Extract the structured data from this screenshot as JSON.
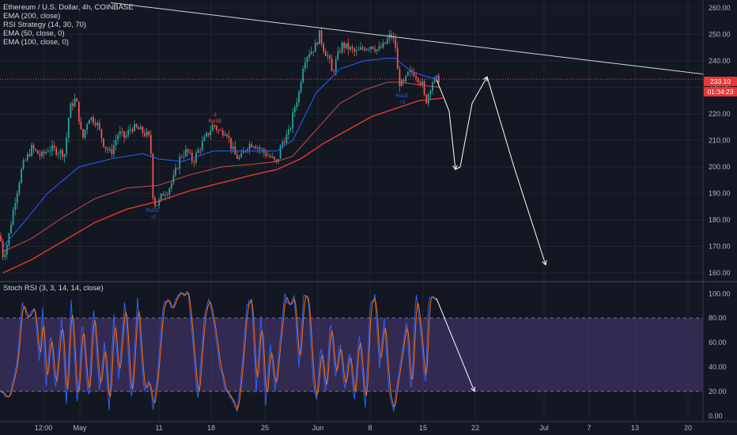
{
  "legend": {
    "title": "Ethereum / U.S. Dollar, 4h, COINBASE",
    "studies": [
      "EMA (200, close)",
      "RSI Strategy (14, 30, 70)",
      "EMA (50, close, 0)",
      "EMA (100, close, 0)"
    ]
  },
  "stoch_legend": "Stoch RSI (3, 3, 14, 14, close)",
  "price_tag": "233.10",
  "countdown_tag": "01:34:23",
  "signals": [
    "-2",
    "RsiSE",
    "RsiLE",
    "+2",
    "RsiLE",
    "+2"
  ],
  "colors": {
    "background": "#131722",
    "up": "#26a69a",
    "down": "#ef5350",
    "ema50": "#2962ff",
    "ema100": "#ef5350",
    "ema200": "#e53935",
    "stoch_k": "#2962ff",
    "stoch_d": "#ff6d00",
    "rsi_band": "#7e57c2"
  },
  "chart_data": [
    {
      "type": "candlestick",
      "title": "Ethereum / U.S. Dollar, 4h, COINBASE",
      "ylim": [
        157,
        263
      ],
      "y_ticks": [
        160,
        170,
        180,
        190,
        200,
        210,
        220,
        230,
        240,
        250,
        260
      ],
      "x_ticks": [
        "12:00",
        "May",
        "11",
        "18",
        "25",
        "Jun",
        "8",
        "15",
        "22",
        "Jul",
        "7",
        "13",
        "20"
      ],
      "price_path": [
        [
          0,
          174
        ],
        [
          4,
          166
        ],
        [
          10,
          172
        ],
        [
          18,
          186
        ],
        [
          28,
          200
        ],
        [
          40,
          207
        ],
        [
          52,
          204
        ],
        [
          62,
          207
        ],
        [
          72,
          206
        ],
        [
          82,
          205
        ],
        [
          88,
          222
        ],
        [
          96,
          226
        ],
        [
          104,
          210
        ],
        [
          112,
          219
        ],
        [
          122,
          217
        ],
        [
          132,
          208
        ],
        [
          140,
          205
        ],
        [
          150,
          213
        ],
        [
          158,
          211
        ],
        [
          166,
          215
        ],
        [
          176,
          214
        ],
        [
          186,
          212
        ],
        [
          190,
          210
        ],
        [
          194,
          186
        ],
        [
          200,
          186
        ],
        [
          206,
          190
        ],
        [
          212,
          191
        ],
        [
          220,
          196
        ],
        [
          228,
          204
        ],
        [
          236,
          206
        ],
        [
          244,
          202
        ],
        [
          252,
          207
        ],
        [
          262,
          212
        ],
        [
          270,
          216
        ],
        [
          278,
          213
        ],
        [
          286,
          214
        ],
        [
          292,
          208
        ],
        [
          298,
          204
        ],
        [
          304,
          203
        ],
        [
          312,
          208
        ],
        [
          320,
          209
        ],
        [
          328,
          207
        ],
        [
          336,
          205
        ],
        [
          344,
          203
        ],
        [
          350,
          201
        ],
        [
          356,
          209
        ],
        [
          366,
          213
        ],
        [
          372,
          222
        ],
        [
          378,
          228
        ],
        [
          384,
          240
        ],
        [
          390,
          243
        ],
        [
          398,
          245
        ],
        [
          404,
          250
        ],
        [
          410,
          244
        ],
        [
          416,
          241
        ],
        [
          420,
          235
        ],
        [
          426,
          241
        ],
        [
          432,
          246
        ],
        [
          440,
          245
        ],
        [
          450,
          243
        ],
        [
          460,
          245
        ],
        [
          470,
          246
        ],
        [
          478,
          244
        ],
        [
          486,
          246
        ],
        [
          494,
          250
        ],
        [
          500,
          246
        ],
        [
          504,
          232
        ],
        [
          510,
          231
        ],
        [
          516,
          235
        ],
        [
          522,
          236
        ],
        [
          528,
          234
        ],
        [
          534,
          231
        ],
        [
          538,
          224
        ],
        [
          542,
          228
        ],
        [
          546,
          232
        ],
        [
          552,
          233
        ],
        [
          556,
          233.1
        ]
      ],
      "ema50": [
        [
          4,
          170
        ],
        [
          30,
          179
        ],
        [
          60,
          190
        ],
        [
          100,
          200
        ],
        [
          140,
          203
        ],
        [
          180,
          205
        ],
        [
          200,
          203
        ],
        [
          230,
          202
        ],
        [
          270,
          206
        ],
        [
          310,
          206
        ],
        [
          350,
          206
        ],
        [
          370,
          210
        ],
        [
          400,
          228
        ],
        [
          430,
          237
        ],
        [
          460,
          240
        ],
        [
          490,
          241
        ],
        [
          500,
          241
        ],
        [
          520,
          236
        ],
        [
          540,
          234
        ],
        [
          556,
          233
        ]
      ],
      "ema100": [
        [
          4,
          168
        ],
        [
          40,
          173
        ],
        [
          80,
          181
        ],
        [
          120,
          188
        ],
        [
          160,
          192
        ],
        [
          200,
          193
        ],
        [
          240,
          197
        ],
        [
          280,
          200
        ],
        [
          320,
          201
        ],
        [
          350,
          202
        ],
        [
          370,
          204
        ],
        [
          400,
          214
        ],
        [
          430,
          224
        ],
        [
          460,
          229
        ],
        [
          490,
          232
        ],
        [
          505,
          232
        ],
        [
          530,
          231
        ],
        [
          556,
          230
        ]
      ],
      "ema200": [
        [
          4,
          160
        ],
        [
          40,
          165
        ],
        [
          80,
          172
        ],
        [
          120,
          179
        ],
        [
          160,
          184
        ],
        [
          200,
          187
        ],
        [
          240,
          191
        ],
        [
          280,
          194
        ],
        [
          320,
          197
        ],
        [
          350,
          199
        ],
        [
          380,
          203
        ],
        [
          410,
          209
        ],
        [
          440,
          214
        ],
        [
          470,
          219
        ],
        [
          500,
          222
        ],
        [
          530,
          225
        ],
        [
          560,
          226
        ]
      ],
      "trendline": [
        [
          140,
          262
        ],
        [
          890,
          235
        ]
      ],
      "current_price": 233.1,
      "forecast_path": [
        [
          552,
          233
        ],
        [
          568,
          221
        ],
        [
          576,
          199
        ],
        [
          582,
          200
        ],
        [
          597,
          224
        ],
        [
          616,
          234
        ],
        [
          650,
          200
        ],
        [
          690,
          163
        ]
      ]
    },
    {
      "type": "line",
      "title": "Stoch RSI (3, 3, 14, 14, close)",
      "ylim": [
        -4,
        106
      ],
      "y_ticks": [
        0,
        20,
        40,
        60,
        80,
        100
      ],
      "band": [
        20,
        80
      ],
      "k_pivots": [
        [
          0,
          20
        ],
        [
          12,
          15
        ],
        [
          22,
          45
        ],
        [
          28,
          92
        ],
        [
          36,
          80
        ],
        [
          44,
          90
        ],
        [
          50,
          40
        ],
        [
          54,
          88
        ],
        [
          58,
          20
        ],
        [
          64,
          70
        ],
        [
          70,
          20
        ],
        [
          78,
          80
        ],
        [
          84,
          10
        ],
        [
          90,
          95
        ],
        [
          98,
          5
        ],
        [
          104,
          80
        ],
        [
          112,
          10
        ],
        [
          118,
          90
        ],
        [
          126,
          20
        ],
        [
          132,
          60
        ],
        [
          138,
          5
        ],
        [
          144,
          85
        ],
        [
          150,
          30
        ],
        [
          158,
          95
        ],
        [
          166,
          10
        ],
        [
          174,
          95
        ],
        [
          182,
          20
        ],
        [
          188,
          30
        ],
        [
          194,
          5
        ],
        [
          200,
          40
        ],
        [
          206,
          90
        ],
        [
          212,
          95
        ],
        [
          218,
          88
        ],
        [
          224,
          98
        ],
        [
          232,
          100
        ],
        [
          238,
          100
        ],
        [
          244,
          60
        ],
        [
          250,
          10
        ],
        [
          258,
          80
        ],
        [
          264,
          95
        ],
        [
          272,
          70
        ],
        [
          278,
          40
        ],
        [
          286,
          20
        ],
        [
          292,
          15
        ],
        [
          300,
          5
        ],
        [
          306,
          40
        ],
        [
          312,
          90
        ],
        [
          318,
          95
        ],
        [
          324,
          20
        ],
        [
          330,
          80
        ],
        [
          336,
          10
        ],
        [
          342,
          60
        ],
        [
          348,
          20
        ],
        [
          354,
          60
        ],
        [
          360,
          98
        ],
        [
          366,
          90
        ],
        [
          372,
          98
        ],
        [
          378,
          40
        ],
        [
          384,
          98
        ],
        [
          390,
          95
        ],
        [
          396,
          30
        ],
        [
          400,
          10
        ],
        [
          406,
          60
        ],
        [
          412,
          15
        ],
        [
          418,
          80
        ],
        [
          424,
          30
        ],
        [
          430,
          60
        ],
        [
          436,
          20
        ],
        [
          442,
          55
        ],
        [
          448,
          10
        ],
        [
          454,
          70
        ],
        [
          462,
          5
        ],
        [
          468,
          90
        ],
        [
          474,
          98
        ],
        [
          480,
          40
        ],
        [
          486,
          80
        ],
        [
          492,
          20
        ],
        [
          498,
          5
        ],
        [
          504,
          35
        ],
        [
          510,
          60
        ],
        [
          514,
          80
        ],
        [
          520,
          15
        ],
        [
          526,
          100
        ],
        [
          532,
          70
        ],
        [
          538,
          20
        ],
        [
          542,
          95
        ],
        [
          548,
          98
        ],
        [
          552,
          96
        ]
      ],
      "forecast_path": [
        [
          552,
          96
        ],
        [
          600,
          20
        ]
      ]
    }
  ]
}
